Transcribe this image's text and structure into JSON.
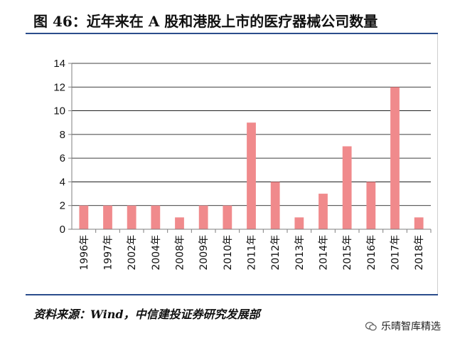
{
  "header": {
    "title": "图 46：近年来在 A 股和港股上市的医疗器械公司数量"
  },
  "footer": {
    "source": "资料来源：Wind，中信建投证券研究发展部"
  },
  "watermark": {
    "text": "乐晴智库精选",
    "icon": "wechat-icon"
  },
  "chart_data": {
    "type": "bar",
    "categories": [
      "1996年",
      "1997年",
      "2002年",
      "2004年",
      "2008年",
      "2009年",
      "2010年",
      "2011年",
      "2012年",
      "2013年",
      "2014年",
      "2015年",
      "2016年",
      "2017年",
      "2018年"
    ],
    "values": [
      2,
      2,
      2,
      2,
      1,
      2,
      2,
      9,
      4,
      1,
      3,
      7,
      4,
      12,
      1
    ],
    "xlabel": "",
    "ylabel": "",
    "ylim": [
      0,
      14
    ],
    "yticks": [
      0,
      2,
      4,
      6,
      8,
      10,
      12,
      14
    ],
    "grid": true,
    "legend": "none",
    "bar_color": "#f08a8c"
  }
}
